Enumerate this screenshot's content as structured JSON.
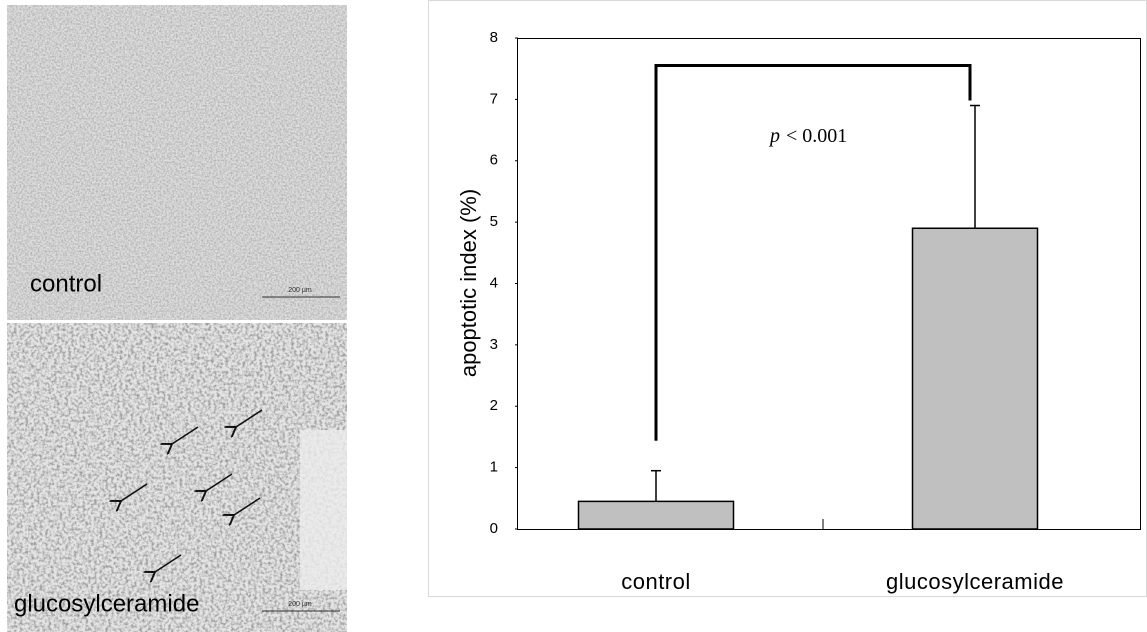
{
  "panels": [
    {
      "label": "control",
      "scale_bar": "200 µm"
    },
    {
      "label": "glucosylceramide",
      "scale_bar": "200 µm"
    }
  ],
  "chart_data": {
    "type": "bar",
    "categories": [
      "control",
      "glucosylceramide"
    ],
    "values": [
      0.45,
      4.9
    ],
    "errors": [
      0.5,
      2.0
    ],
    "color": "#c0c0c0",
    "ylabel": "apoptotic index (%)",
    "ylim": [
      0,
      8
    ],
    "yticks": [
      0,
      1,
      2,
      3,
      4,
      5,
      6,
      7,
      8
    ],
    "grid": false,
    "annotation": {
      "symbol": "p",
      "text": "< 0.001"
    }
  }
}
